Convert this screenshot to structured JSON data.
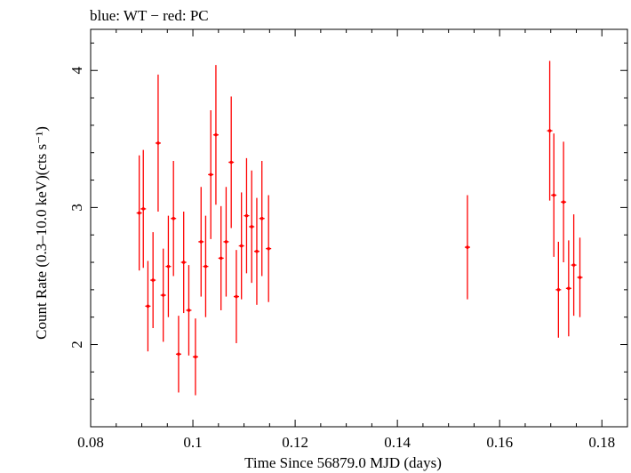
{
  "chart_data": {
    "type": "scatter",
    "title": "blue: WT − red: PC",
    "xlabel": "Time Since 56879.0 MJD (days)",
    "ylabel": "Count Rate (0.3–10.0 keV)(cts s⁻¹)",
    "xlim": [
      0.08,
      0.185
    ],
    "ylim": [
      1.4,
      4.3
    ],
    "x_ticks": [
      {
        "value": 0.08,
        "label": "0.08"
      },
      {
        "value": 0.1,
        "label": "0.1"
      },
      {
        "value": 0.12,
        "label": "0.12"
      },
      {
        "value": 0.14,
        "label": "0.14"
      },
      {
        "value": 0.16,
        "label": "0.16"
      },
      {
        "value": 0.18,
        "label": "0.18"
      }
    ],
    "y_ticks": [
      {
        "value": 2,
        "label": "2"
      },
      {
        "value": 3,
        "label": "3"
      },
      {
        "value": 4,
        "label": "4"
      }
    ],
    "grid": false,
    "series": [
      {
        "name": "PC",
        "color": "#ff0000",
        "points": [
          {
            "x": 0.0895,
            "y": 2.96,
            "yerr": 0.42
          },
          {
            "x": 0.0903,
            "y": 2.99,
            "yerr": 0.43
          },
          {
            "x": 0.0912,
            "y": 2.28,
            "yerr": 0.33
          },
          {
            "x": 0.0922,
            "y": 2.47,
            "yerr": 0.35
          },
          {
            "x": 0.0932,
            "y": 3.47,
            "yerr": 0.5
          },
          {
            "x": 0.0942,
            "y": 2.36,
            "yerr": 0.34
          },
          {
            "x": 0.0952,
            "y": 2.57,
            "yerr": 0.37
          },
          {
            "x": 0.0962,
            "y": 2.92,
            "yerr": 0.42
          },
          {
            "x": 0.0972,
            "y": 1.93,
            "yerr": 0.28
          },
          {
            "x": 0.0982,
            "y": 2.6,
            "yerr": 0.37
          },
          {
            "x": 0.0992,
            "y": 2.25,
            "yerr": 0.33
          },
          {
            "x": 0.1005,
            "y": 1.91,
            "yerr": 0.28
          },
          {
            "x": 0.1016,
            "y": 2.75,
            "yerr": 0.4
          },
          {
            "x": 0.1025,
            "y": 2.57,
            "yerr": 0.37
          },
          {
            "x": 0.1035,
            "y": 3.24,
            "yerr": 0.47
          },
          {
            "x": 0.1045,
            "y": 3.53,
            "yerr": 0.51
          },
          {
            "x": 0.1055,
            "y": 2.63,
            "yerr": 0.38
          },
          {
            "x": 0.1065,
            "y": 2.75,
            "yerr": 0.4
          },
          {
            "x": 0.1075,
            "y": 3.33,
            "yerr": 0.48
          },
          {
            "x": 0.1085,
            "y": 2.35,
            "yerr": 0.34
          },
          {
            "x": 0.1095,
            "y": 2.72,
            "yerr": 0.39
          },
          {
            "x": 0.1105,
            "y": 2.94,
            "yerr": 0.42
          },
          {
            "x": 0.1115,
            "y": 2.86,
            "yerr": 0.41
          },
          {
            "x": 0.1125,
            "y": 2.68,
            "yerr": 0.39
          },
          {
            "x": 0.1135,
            "y": 2.92,
            "yerr": 0.42
          },
          {
            "x": 0.1148,
            "y": 2.7,
            "yerr": 0.39
          },
          {
            "x": 0.1537,
            "y": 2.71,
            "yerr": 0.38
          },
          {
            "x": 0.1698,
            "y": 3.56,
            "yerr": 0.51
          },
          {
            "x": 0.1706,
            "y": 3.09,
            "yerr": 0.45
          },
          {
            "x": 0.1715,
            "y": 2.4,
            "yerr": 0.35
          },
          {
            "x": 0.1725,
            "y": 3.04,
            "yerr": 0.44
          },
          {
            "x": 0.1735,
            "y": 2.41,
            "yerr": 0.35
          },
          {
            "x": 0.1745,
            "y": 2.58,
            "yerr": 0.37
          },
          {
            "x": 0.1757,
            "y": 2.49,
            "yerr": 0.29
          }
        ]
      }
    ]
  }
}
